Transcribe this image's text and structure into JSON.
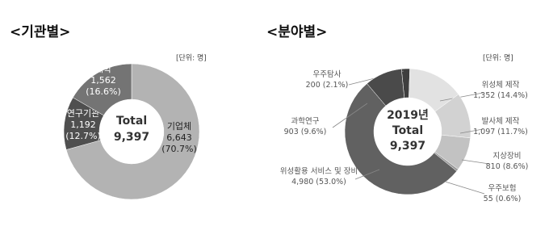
{
  "chart_data": [
    {
      "type": "donut",
      "title": "<기관별>",
      "unit": "[단위: 명]",
      "center_texts": [
        "Total"
      ],
      "total": {
        "value": 9397,
        "label": "9,397"
      },
      "categories": [
        "기업체",
        "연구기관",
        "대학"
      ],
      "values": [
        6643,
        1192,
        1562
      ],
      "value_labels": [
        "6,643",
        "1,192",
        "1,562"
      ],
      "percents": [
        70.7,
        12.7,
        16.6
      ],
      "percent_labels": [
        "(70.7%)",
        "(12.7%)",
        "(16.6%)"
      ],
      "colors": [
        "#b3b3b3",
        "#4f4f4f",
        "#747474"
      ]
    },
    {
      "type": "donut",
      "title": "<분야별>",
      "unit": "[단위: 명]",
      "center_texts": [
        "2019년",
        "Total"
      ],
      "total": {
        "value": 9397,
        "label": "9,397"
      },
      "categories": [
        "우주탐사",
        "위성체 제작",
        "발사체 제작",
        "지상장비",
        "우주보험",
        "위성활용 서비스 및 장비",
        "과학연구"
      ],
      "values": [
        200,
        1352,
        1097,
        810,
        55,
        4980,
        903
      ],
      "value_labels": [
        "200",
        "1,352",
        "1,097",
        "810",
        "55",
        "4,980",
        "903"
      ],
      "percents": [
        2.1,
        14.4,
        11.7,
        8.6,
        0.6,
        53.0,
        9.6
      ],
      "percent_labels": [
        "(2.1%)",
        "(14.4%)",
        "(11.7%)",
        "(8.6%)",
        "(0.6%)",
        "(53.0%)",
        "(9.6%)"
      ],
      "colors": [
        "#3f3f3f",
        "#e2e2e2",
        "#d2d2d2",
        "#c2c2c2",
        "#9a9a9a",
        "#616161",
        "#4a4a4a"
      ]
    }
  ]
}
